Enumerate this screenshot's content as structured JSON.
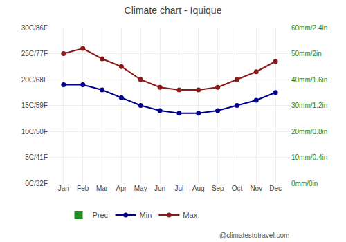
{
  "chart_data": {
    "type": "line",
    "title": "Climate chart - Iquique",
    "categories": [
      "Jan",
      "Feb",
      "Mar",
      "Apr",
      "May",
      "Jun",
      "Jul",
      "Aug",
      "Sep",
      "Oct",
      "Nov",
      "Dec"
    ],
    "series": [
      {
        "name": "Prec",
        "type": "bar",
        "axis": "y2",
        "color": "#228B22",
        "values": [
          0.0,
          0.0,
          0.0,
          0.0,
          0.0,
          0.0,
          0.0,
          0.0,
          0.0,
          0.0,
          0.0,
          0.0
        ]
      },
      {
        "name": "Min",
        "type": "line",
        "color": "#00008B",
        "marker": "circle",
        "values": [
          19.0,
          19.0,
          18.0,
          16.5,
          15.0,
          14.0,
          13.5,
          13.5,
          14.0,
          15.0,
          16.0,
          17.5
        ]
      },
      {
        "name": "Max",
        "type": "line",
        "color": "#8B1A1A",
        "marker": "circle",
        "values": [
          25.0,
          26.0,
          24.0,
          22.5,
          20.0,
          18.5,
          18.0,
          18.0,
          18.5,
          20.0,
          21.5,
          23.5
        ]
      }
    ],
    "ylim": [
      0,
      30
    ],
    "yticks": [
      {
        "value": 0,
        "label": "0C/32F"
      },
      {
        "value": 5,
        "label": "5C/41F"
      },
      {
        "value": 10,
        "label": "10C/50F"
      },
      {
        "value": 15,
        "label": "15C/59F"
      },
      {
        "value": 20,
        "label": "20C/68F"
      },
      {
        "value": 25,
        "label": "25C/77F"
      },
      {
        "value": 30,
        "label": "30C/86F"
      }
    ],
    "y2lim": [
      0,
      60
    ],
    "y2ticks": [
      {
        "value": 0,
        "label": "0mm/0in"
      },
      {
        "value": 10,
        "label": "10mm/0.4in"
      },
      {
        "value": 20,
        "label": "20mm/0.8in"
      },
      {
        "value": 30,
        "label": "30mm/1.2in"
      },
      {
        "value": 40,
        "label": "40mm/1.6in"
      },
      {
        "value": 50,
        "label": "50mm/2in"
      },
      {
        "value": 60,
        "label": "60mm/2.4in"
      }
    ],
    "grid": true,
    "legend": "bottom",
    "annotations": [
      "@climatestotravel.com"
    ]
  }
}
